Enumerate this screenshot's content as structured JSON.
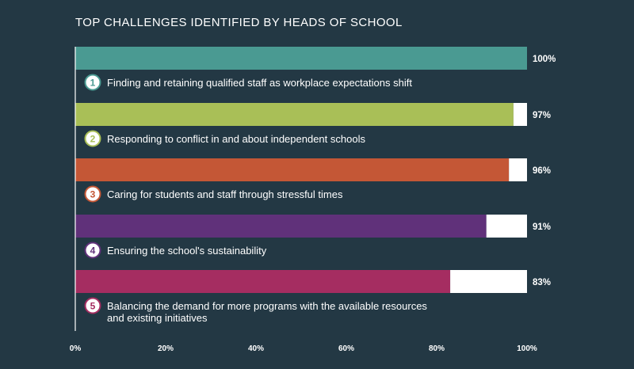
{
  "chart_data": {
    "type": "bar",
    "orientation": "horizontal",
    "title": "TOP CHALLENGES IDENTIFIED BY HEADS OF SCHOOL",
    "xlim": [
      0,
      100
    ],
    "x_ticks": [
      "0%",
      "20%",
      "40%",
      "60%",
      "80%",
      "100%"
    ],
    "categories": [
      "Finding and retaining qualified staff as workplace expectations shift",
      "Responding to conflict in and about independent schools",
      "Caring for students and staff through stressful times",
      "Ensuring the school's sustainability",
      "Balancing the demand for more programs with the available resources and existing initiatives"
    ],
    "category_lines": [
      [
        "Finding and retaining qualified staff as workplace expectations shift"
      ],
      [
        "Responding to conflict in and about independent schools"
      ],
      [
        "Caring for students and staff through stressful times"
      ],
      [
        "Ensuring the school's sustainability"
      ],
      [
        "Balancing the demand for more programs with the available resources",
        "and existing initiatives"
      ]
    ],
    "ranks": [
      "1",
      "2",
      "3",
      "4",
      "5"
    ],
    "values": [
      100,
      97,
      96,
      91,
      83
    ],
    "value_labels": [
      "100%",
      "97%",
      "96%",
      "91%",
      "83%"
    ],
    "colors": [
      "#4a9a92",
      "#a9bf57",
      "#c45736",
      "#60317a",
      "#a52d61"
    ],
    "remainder_color": "#ffffff",
    "background": "#233844",
    "grid": false
  }
}
